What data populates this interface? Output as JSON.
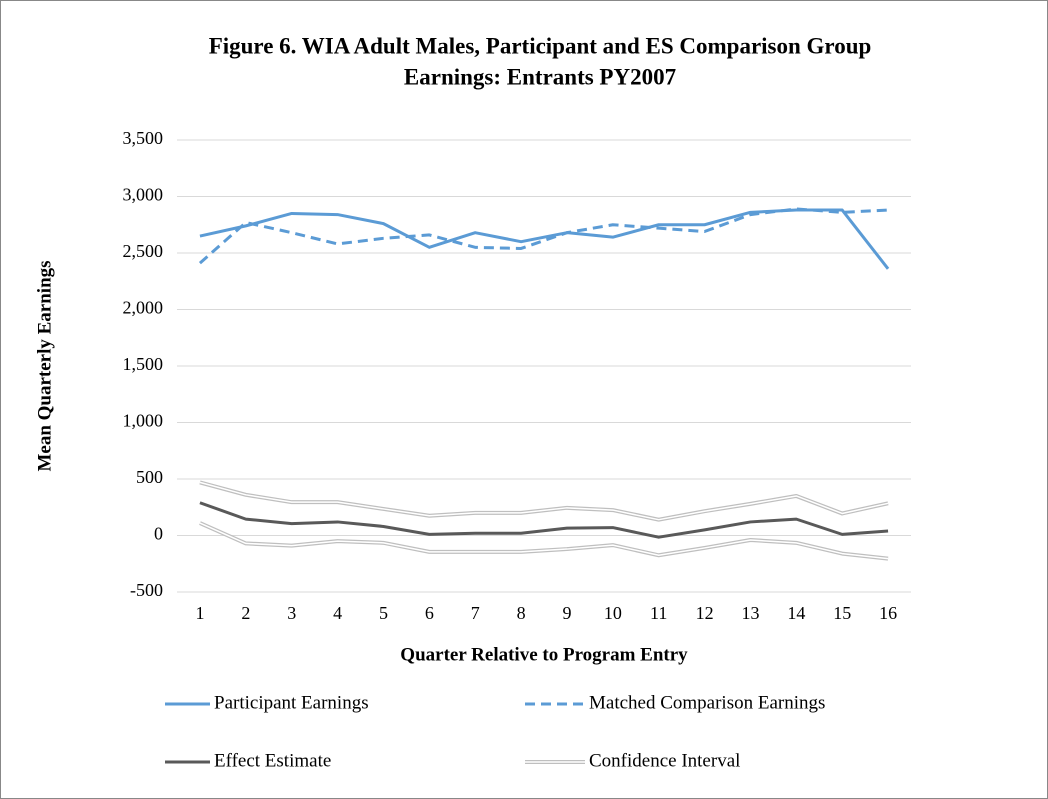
{
  "chart_data": {
    "type": "line",
    "title": [
      "Figure 6. WIA Adult Males, Participant and ES Comparison Group",
      "Earnings: Entrants PY2007"
    ],
    "x_label": "Quarter Relative to Program Entry",
    "y_label": "Mean Quarterly Earnings",
    "categories": [
      "1",
      "2",
      "3",
      "4",
      "5",
      "6",
      "7",
      "8",
      "9",
      "10",
      "11",
      "12",
      "13",
      "14",
      "15",
      "16"
    ],
    "ylim": [
      -500,
      3500
    ],
    "yticks": [
      -500,
      0,
      500,
      {
        "value": 1000,
        "label": "1,000"
      },
      {
        "value": 1500,
        "label": "1,500"
      },
      {
        "value": 2000,
        "label": "2,000"
      },
      {
        "value": 2500,
        "label": "2,500"
      },
      {
        "value": 3000,
        "label": "3,000"
      },
      {
        "value": 3500,
        "label": "3,500"
      }
    ],
    "grid": true,
    "series": [
      {
        "name": "Participant Earnings",
        "color": "#5b9bd5",
        "style": "solid",
        "values": [
          2650,
          2740,
          2850,
          2840,
          2760,
          2550,
          2680,
          2600,
          2680,
          2640,
          2750,
          2750,
          2860,
          2880,
          2880,
          2360
        ]
      },
      {
        "name": "Matched Comparison Earnings",
        "color": "#5b9bd5",
        "style": "dashed",
        "values": [
          2410,
          2770,
          2680,
          2580,
          2630,
          2660,
          2550,
          2540,
          2680,
          2750,
          2720,
          2690,
          2840,
          2890,
          2860,
          2880
        ]
      },
      {
        "name": "Effect Estimate",
        "color": "#595959",
        "style": "solid",
        "values": [
          290,
          145,
          105,
          120,
          80,
          10,
          20,
          20,
          65,
          70,
          -15,
          50,
          120,
          145,
          10,
          40
        ]
      },
      {
        "name": "Confidence Interval",
        "color": "#bfbfbf",
        "style": "double",
        "values": [
          470,
          360,
          295,
          295,
          235,
          175,
          200,
          200,
          245,
          225,
          140,
          215,
          280,
          350,
          195,
          285
        ],
        "lower": [
          110,
          -70,
          -90,
          -50,
          -65,
          -145,
          -145,
          -145,
          -120,
          -85,
          -175,
          -110,
          -40,
          -65,
          -160,
          -205
        ]
      }
    ]
  }
}
